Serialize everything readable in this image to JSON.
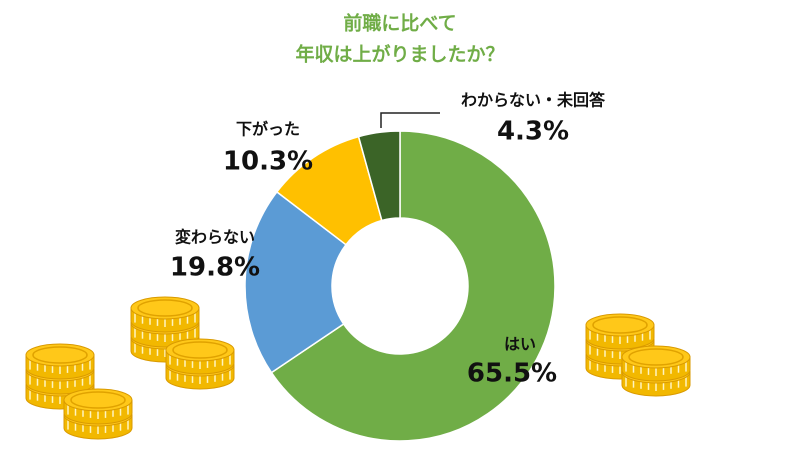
{
  "chart_data": {
    "type": "donut",
    "title": [
      "前職に比べて",
      "年収は上がりましたか？"
    ],
    "categories": [
      "はい",
      "変わらない",
      "下がった",
      "わからない・未回答"
    ],
    "values": [
      65.5,
      19.8,
      10.3,
      4.3
    ],
    "value_labels": [
      "65.5%",
      "19.8%",
      "10.3%",
      "4.3%"
    ],
    "colors": [
      "#70ad47",
      "#5b9bd5",
      "#ffc000",
      "#3b6427"
    ]
  }
}
